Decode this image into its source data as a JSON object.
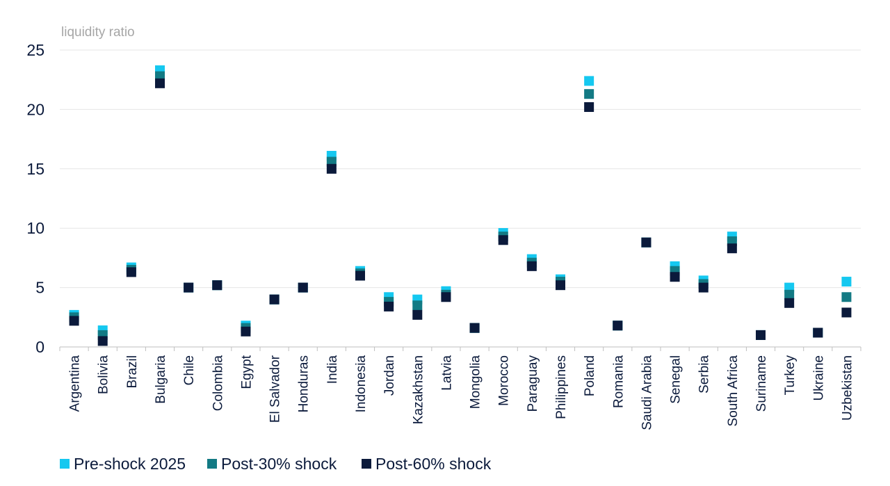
{
  "chart_data": {
    "type": "scatter",
    "title": "",
    "ylabel": "liquidity ratio",
    "xlabel": "",
    "ylim": [
      0,
      25
    ],
    "yticks": [
      "0",
      "5",
      "10",
      "15",
      "20",
      "25"
    ],
    "grid": true,
    "legend_position": "bottom-left",
    "categories": [
      "Argentina",
      "Bolivia",
      "Brazil",
      "Bulgaria",
      "Chile",
      "Colombia",
      "Egypt",
      "El Salvador",
      "Honduras",
      "India",
      "Indonesia",
      "Jordan",
      "Kazakhstan",
      "Latvia",
      "Mongolia",
      "Morocco",
      "Paraguay",
      "Philippines",
      "Poland",
      "Romania",
      "Saudi Arabia",
      "Senegal",
      "Serbia",
      "South Africa",
      "Suriname",
      "Turkey",
      "Ukraine",
      "Uzbekistan"
    ],
    "series": [
      {
        "name": "Pre-shock 2025",
        "color": "#15c8f0",
        "marker": "square",
        "values": [
          2.7,
          1.4,
          6.7,
          23.3,
          5.0,
          5.2,
          1.8,
          4.0,
          5.0,
          16.1,
          6.4,
          4.2,
          4.0,
          4.7,
          1.6,
          9.6,
          7.4,
          5.7,
          22.4,
          1.8,
          8.8,
          6.8,
          5.6,
          9.3,
          1.0,
          5.0,
          1.2,
          5.5
        ]
      },
      {
        "name": "Post-30% shock",
        "color": "#137a84",
        "marker": "square",
        "values": [
          2.5,
          1.0,
          6.5,
          22.8,
          5.0,
          5.2,
          1.6,
          4.0,
          5.0,
          15.6,
          6.2,
          3.8,
          3.5,
          4.4,
          1.6,
          9.3,
          7.1,
          5.5,
          21.3,
          1.8,
          8.8,
          6.4,
          5.3,
          8.9,
          1.0,
          4.4,
          1.2,
          4.2
        ]
      },
      {
        "name": "Post-60% shock",
        "color": "#0b1a3b",
        "marker": "square",
        "values": [
          2.2,
          0.5,
          6.3,
          22.2,
          5.0,
          5.2,
          1.3,
          4.0,
          5.0,
          15.0,
          6.0,
          3.4,
          2.7,
          4.2,
          1.6,
          9.0,
          6.8,
          5.2,
          20.2,
          1.8,
          8.8,
          5.9,
          5.0,
          8.3,
          1.0,
          3.7,
          1.2,
          2.9
        ]
      }
    ]
  }
}
